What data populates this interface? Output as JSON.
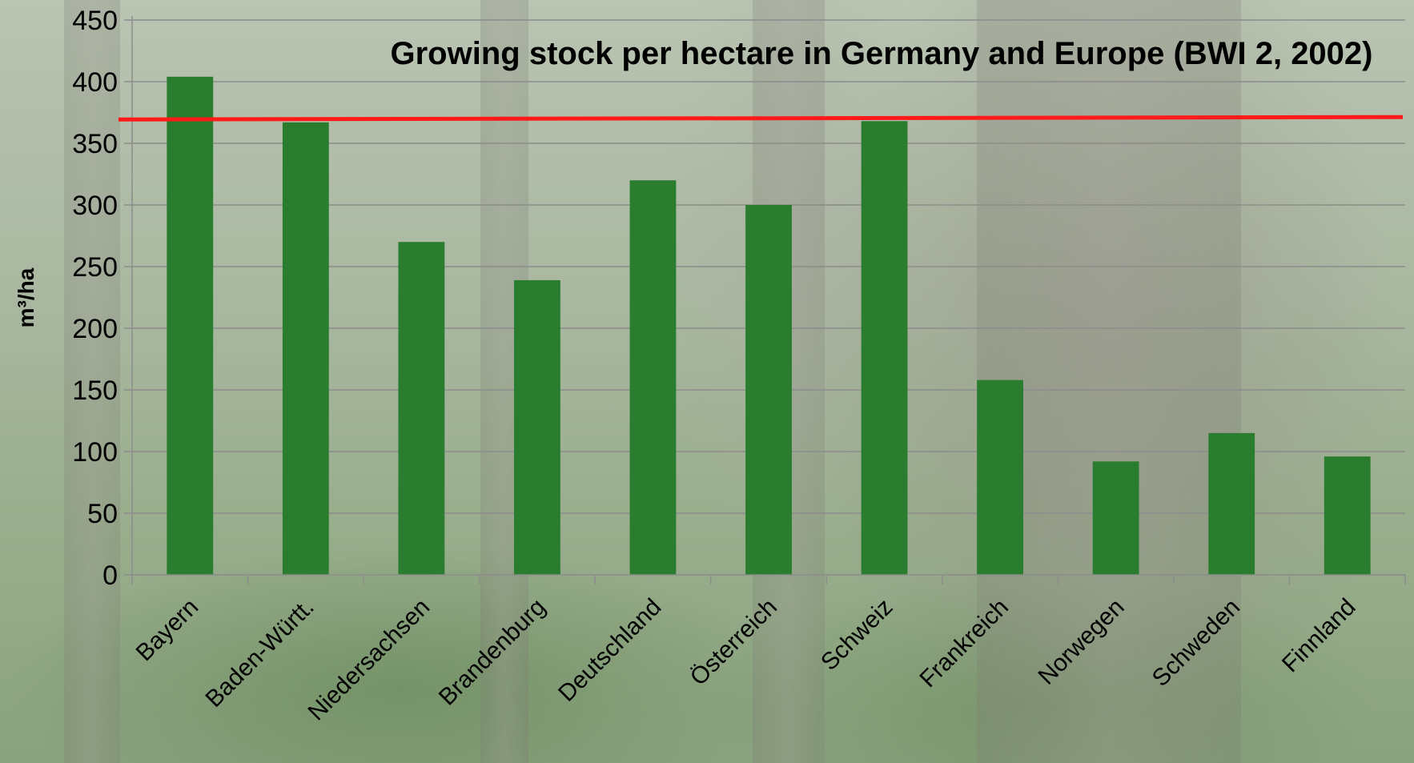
{
  "chart_data": {
    "type": "bar",
    "title": "Growing stock per hectare in Germany and Europe (BWI 2, 2002)",
    "xlabel": "",
    "ylabel": "m³/ha",
    "ylim": [
      0,
      450
    ],
    "yticks": [
      0,
      50,
      100,
      150,
      200,
      250,
      300,
      350,
      400,
      450
    ],
    "grid": true,
    "legend": "none",
    "categories": [
      "Bayern",
      "Baden-Württ.",
      "Niedersachsen",
      "Brandenburg",
      "Deutschland",
      "Österreich",
      "Schweiz",
      "Frankreich",
      "Norwegen",
      "Schweden",
      "Finnland"
    ],
    "series": [
      {
        "values": [
          404,
          367,
          270,
          239,
          320,
          300,
          368,
          158,
          92,
          115,
          96
        ],
        "color": "#2a7d2e"
      }
    ],
    "reference_line": {
      "value": 370,
      "color": "#ff1a1a"
    }
  }
}
